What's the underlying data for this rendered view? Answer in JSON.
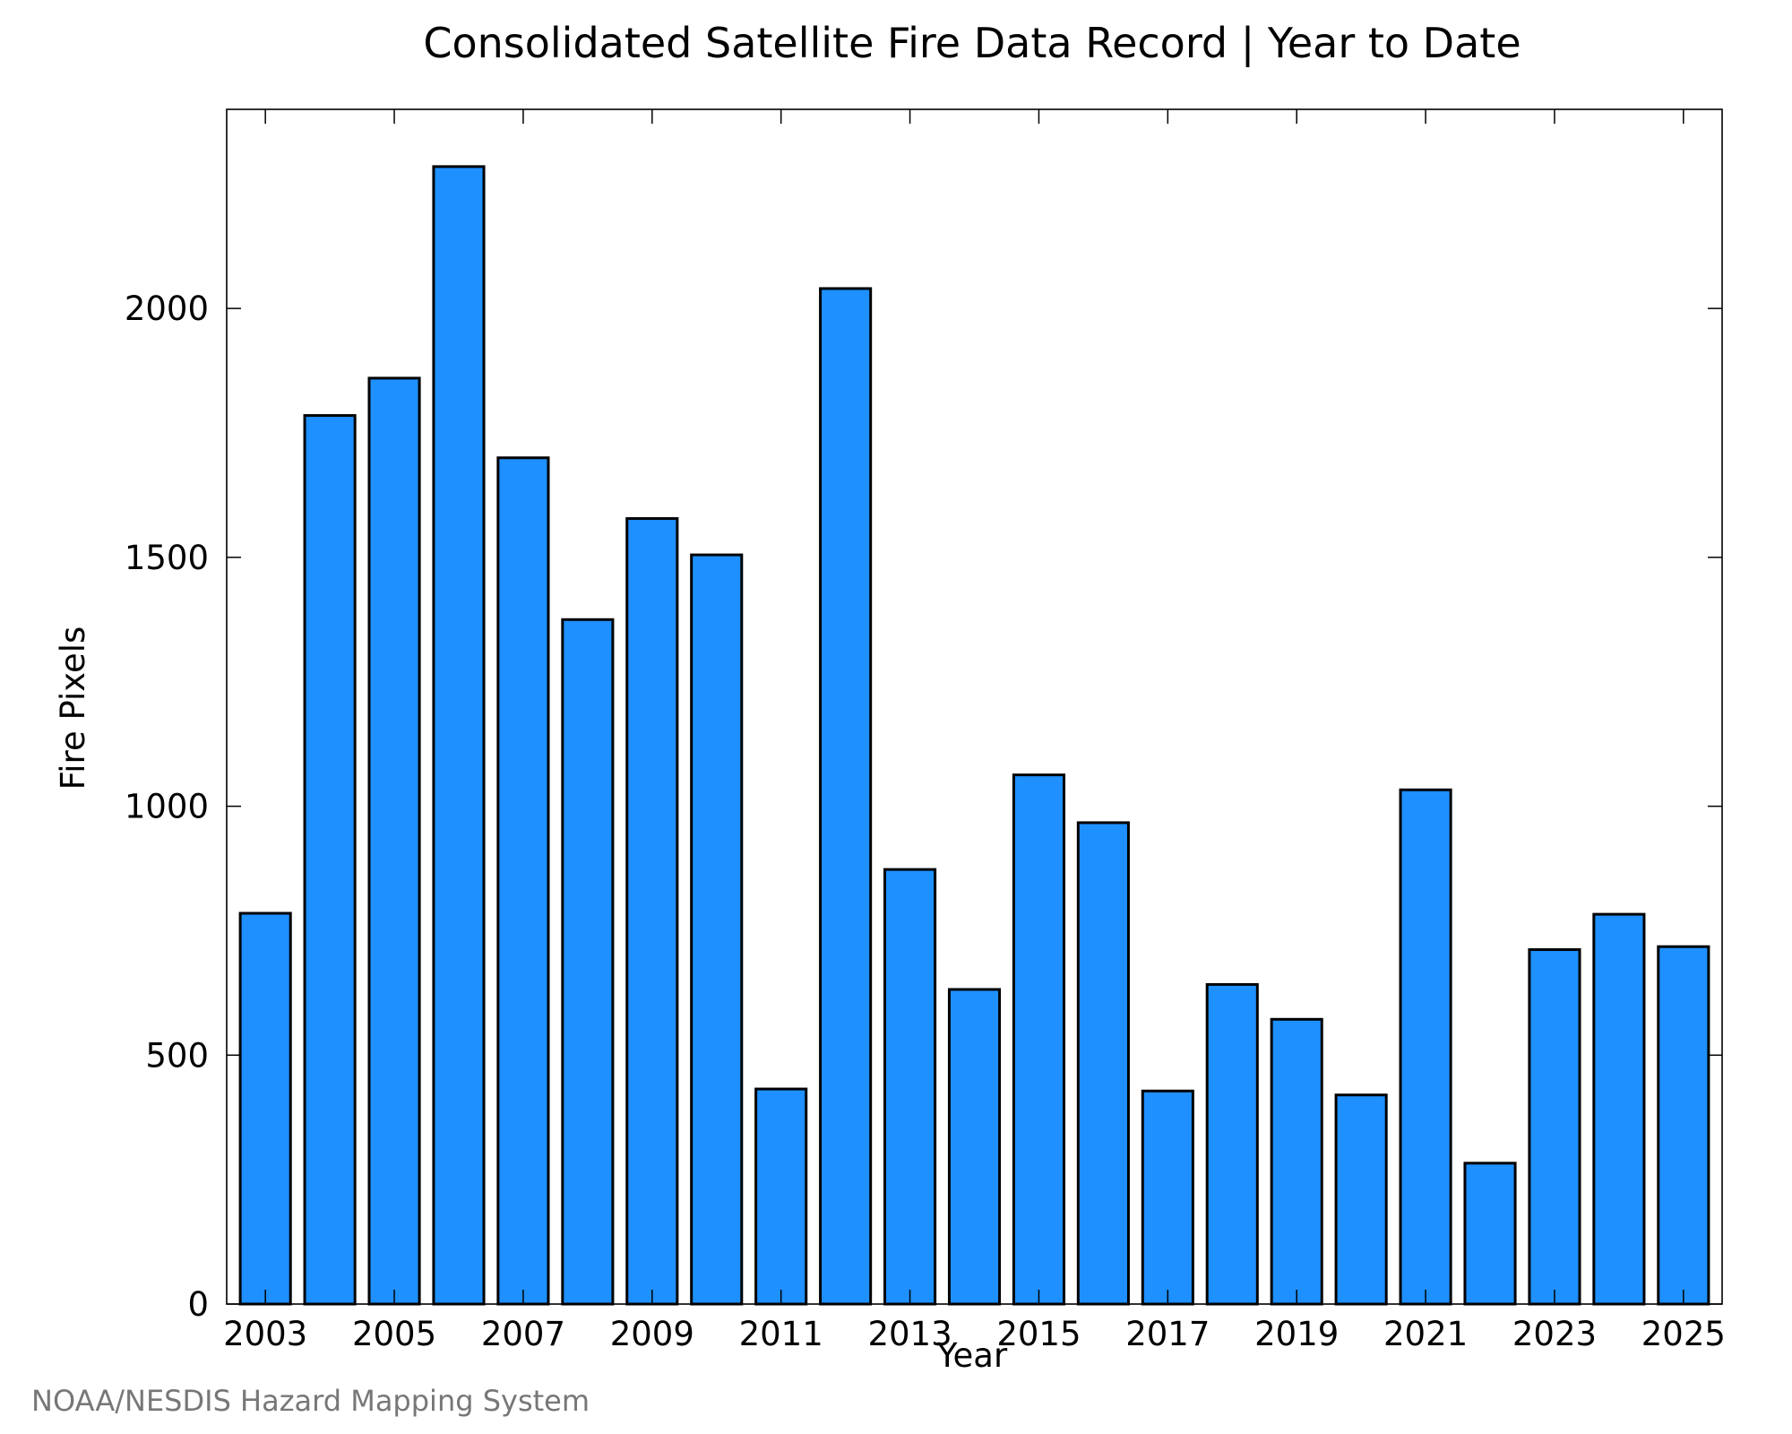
{
  "chart_data": {
    "type": "bar",
    "title": "Consolidated Satellite Fire Data Record | Year to Date",
    "xlabel": "Year",
    "ylabel": "Fire Pixels",
    "categories": [
      "2003",
      "2004",
      "2005",
      "2006",
      "2007",
      "2008",
      "2009",
      "2010",
      "2011",
      "2012",
      "2013",
      "2014",
      "2015",
      "2016",
      "2017",
      "2018",
      "2019",
      "2020",
      "2021",
      "2022",
      "2023",
      "2024",
      "2025"
    ],
    "x_tick_labels": [
      "2003",
      "2005",
      "2007",
      "2009",
      "2011",
      "2013",
      "2015",
      "2017",
      "2019",
      "2021",
      "2023",
      "2025"
    ],
    "values": [
      785,
      1785,
      1860,
      2285,
      1700,
      1375,
      1578,
      1505,
      432,
      2040,
      873,
      632,
      1063,
      967,
      428,
      642,
      572,
      420,
      1033,
      283,
      712,
      783,
      718
    ],
    "ylim": [
      0,
      2400
    ],
    "y_ticks": [
      0,
      500,
      1000,
      1500,
      2000
    ],
    "grid": false,
    "colors": {
      "bar_fill": "#1e90ff",
      "bar_stroke": "#000000"
    }
  },
  "footer": {
    "credit": "NOAA/NESDIS Hazard Mapping System"
  }
}
